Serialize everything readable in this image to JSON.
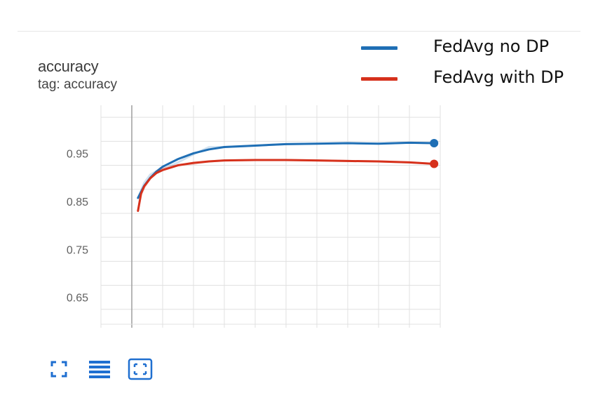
{
  "card": {
    "title": "accuracy",
    "tag": "tag: accuracy"
  },
  "legend": [
    {
      "name": "FedAvg no DP",
      "color": "#1f6fb5"
    },
    {
      "name": "FedAvg with DP",
      "color": "#d6311c"
    }
  ],
  "toolbar": [
    {
      "icon": "fullscreen-icon"
    },
    {
      "icon": "data-table-icon"
    },
    {
      "icon": "fit-domain-icon"
    }
  ],
  "chart_data": {
    "type": "line",
    "title": "accuracy",
    "xlabel": "",
    "ylabel": "",
    "y_ticks": [
      0.65,
      0.75,
      0.85,
      0.95
    ],
    "ylim": [
      0.594,
      1.05
    ],
    "xlim": [
      -1,
      10
    ],
    "grid": true,
    "legend_position": "top-right",
    "series": [
      {
        "name": "FedAvg no DP",
        "color": "#1f6fb5",
        "x": [
          0.2,
          0.4,
          0.6,
          0.8,
          1.0,
          1.5,
          2.0,
          2.5,
          3.0,
          4.0,
          5.0,
          6.0,
          7.0,
          8.0,
          9.0,
          9.8
        ],
        "y": [
          0.857,
          0.882,
          0.899,
          0.912,
          0.922,
          0.938,
          0.95,
          0.958,
          0.963,
          0.966,
          0.969,
          0.97,
          0.971,
          0.97,
          0.972,
          0.971
        ]
      },
      {
        "name": "FedAvg with DP",
        "color": "#d6311c",
        "x": [
          0.2,
          0.3,
          0.4,
          0.6,
          0.8,
          1.0,
          1.5,
          2.0,
          2.5,
          3.0,
          4.0,
          5.0,
          6.0,
          7.0,
          8.0,
          9.0,
          9.8
        ],
        "y": [
          0.83,
          0.866,
          0.881,
          0.898,
          0.909,
          0.915,
          0.925,
          0.93,
          0.933,
          0.935,
          0.936,
          0.936,
          0.935,
          0.934,
          0.933,
          0.931,
          0.928
        ]
      }
    ]
  }
}
